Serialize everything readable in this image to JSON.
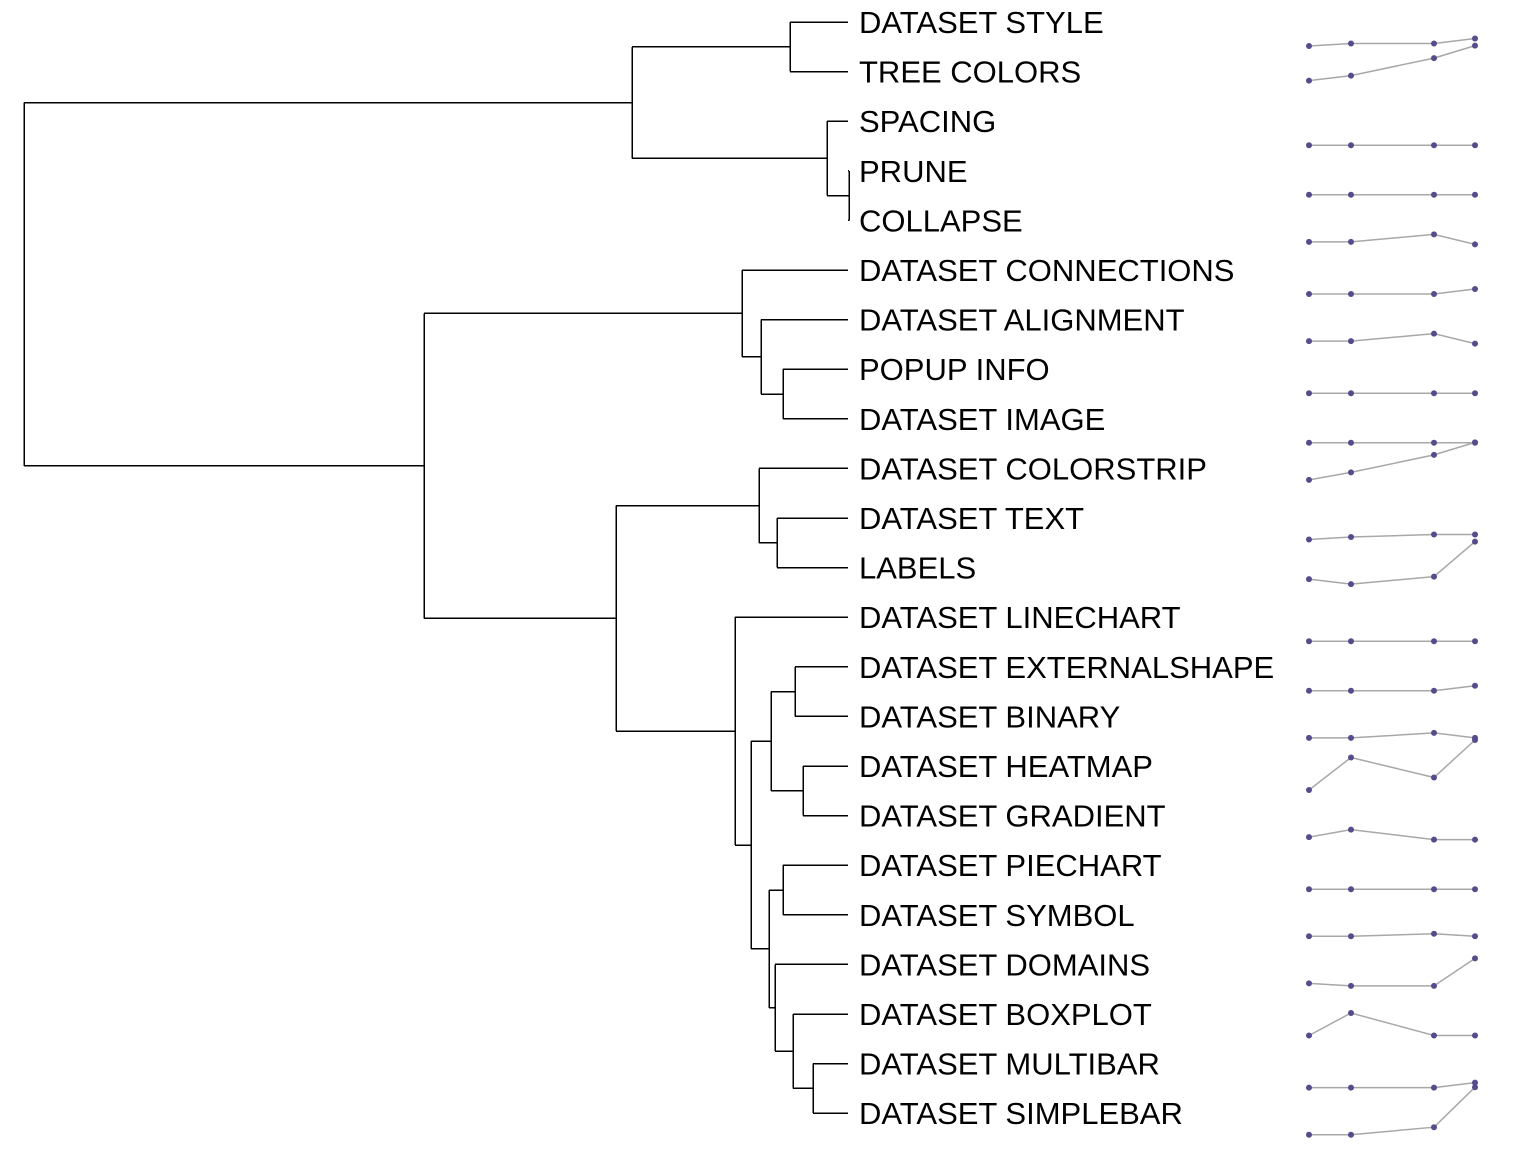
{
  "colors": {
    "branch": "#000000",
    "spark_line": "#a8a8a8",
    "spark_point": "#574b8c"
  },
  "leaves": [
    {
      "label": "DATASET STYLE",
      "series": [
        0.0,
        0.05,
        0.05,
        0.15
      ]
    },
    {
      "label": "TREE COLORS",
      "series": [
        0.3,
        0.4,
        0.75,
        1.0
      ]
    },
    {
      "label": "SPACING",
      "series": [
        0.0,
        0.0,
        0.0,
        0.0
      ]
    },
    {
      "label": "PRUNE",
      "series": [
        0.0,
        0.0,
        0.0,
        0.0
      ]
    },
    {
      "label": "COLLAPSE",
      "series": [
        0.05,
        0.05,
        0.2,
        0.0
      ]
    },
    {
      "label": "DATASET CONNECTIONS",
      "series": [
        0.0,
        0.0,
        0.0,
        0.1
      ]
    },
    {
      "label": "DATASET ALIGNMENT",
      "series": [
        0.05,
        0.05,
        0.2,
        0.0
      ]
    },
    {
      "label": "POPUP INFO",
      "series": [
        0.0,
        0.0,
        0.0,
        0.0
      ]
    },
    {
      "label": "DATASET IMAGE",
      "series": [
        0.0,
        0.0,
        0.0,
        0.0
      ]
    },
    {
      "label": "DATASET COLORSTRIP",
      "series": [
        0.25,
        0.4,
        0.75,
        1.0
      ]
    },
    {
      "label": "DATASET TEXT",
      "series": [
        0.05,
        0.1,
        0.15,
        0.15
      ]
    },
    {
      "label": "LABELS",
      "series": [
        0.25,
        0.15,
        0.3,
        1.0
      ]
    },
    {
      "label": "DATASET LINECHART",
      "series": [
        0.0,
        0.0,
        0.0,
        0.0
      ]
    },
    {
      "label": "DATASET EXTERNALSHAPE",
      "series": [
        0.0,
        0.0,
        0.0,
        0.1
      ]
    },
    {
      "label": "DATASET BINARY",
      "series": [
        0.05,
        0.05,
        0.15,
        0.05
      ]
    },
    {
      "label": "DATASET HEATMAP",
      "series": [
        0.0,
        0.65,
        0.25,
        1.0
      ]
    },
    {
      "label": "DATASET GRADIENT",
      "series": [
        0.05,
        0.2,
        0.0,
        0.0
      ]
    },
    {
      "label": "DATASET PIECHART",
      "series": [
        0.0,
        0.0,
        0.0,
        0.0
      ]
    },
    {
      "label": "DATASET SYMBOL",
      "series": [
        0.05,
        0.05,
        0.1,
        0.05
      ]
    },
    {
      "label": "DATASET DOMAINS",
      "series": [
        0.1,
        0.05,
        0.05,
        0.6
      ]
    },
    {
      "label": "DATASET BOXPLOT",
      "series": [
        0.05,
        0.5,
        0.05,
        0.05
      ]
    },
    {
      "label": "DATASET MULTIBAR",
      "series": [
        0.0,
        0.0,
        0.0,
        0.1
      ]
    },
    {
      "label": "DATASET SIMPLEBAR",
      "series": [
        0.05,
        0.05,
        0.2,
        1.0
      ]
    }
  ]
}
